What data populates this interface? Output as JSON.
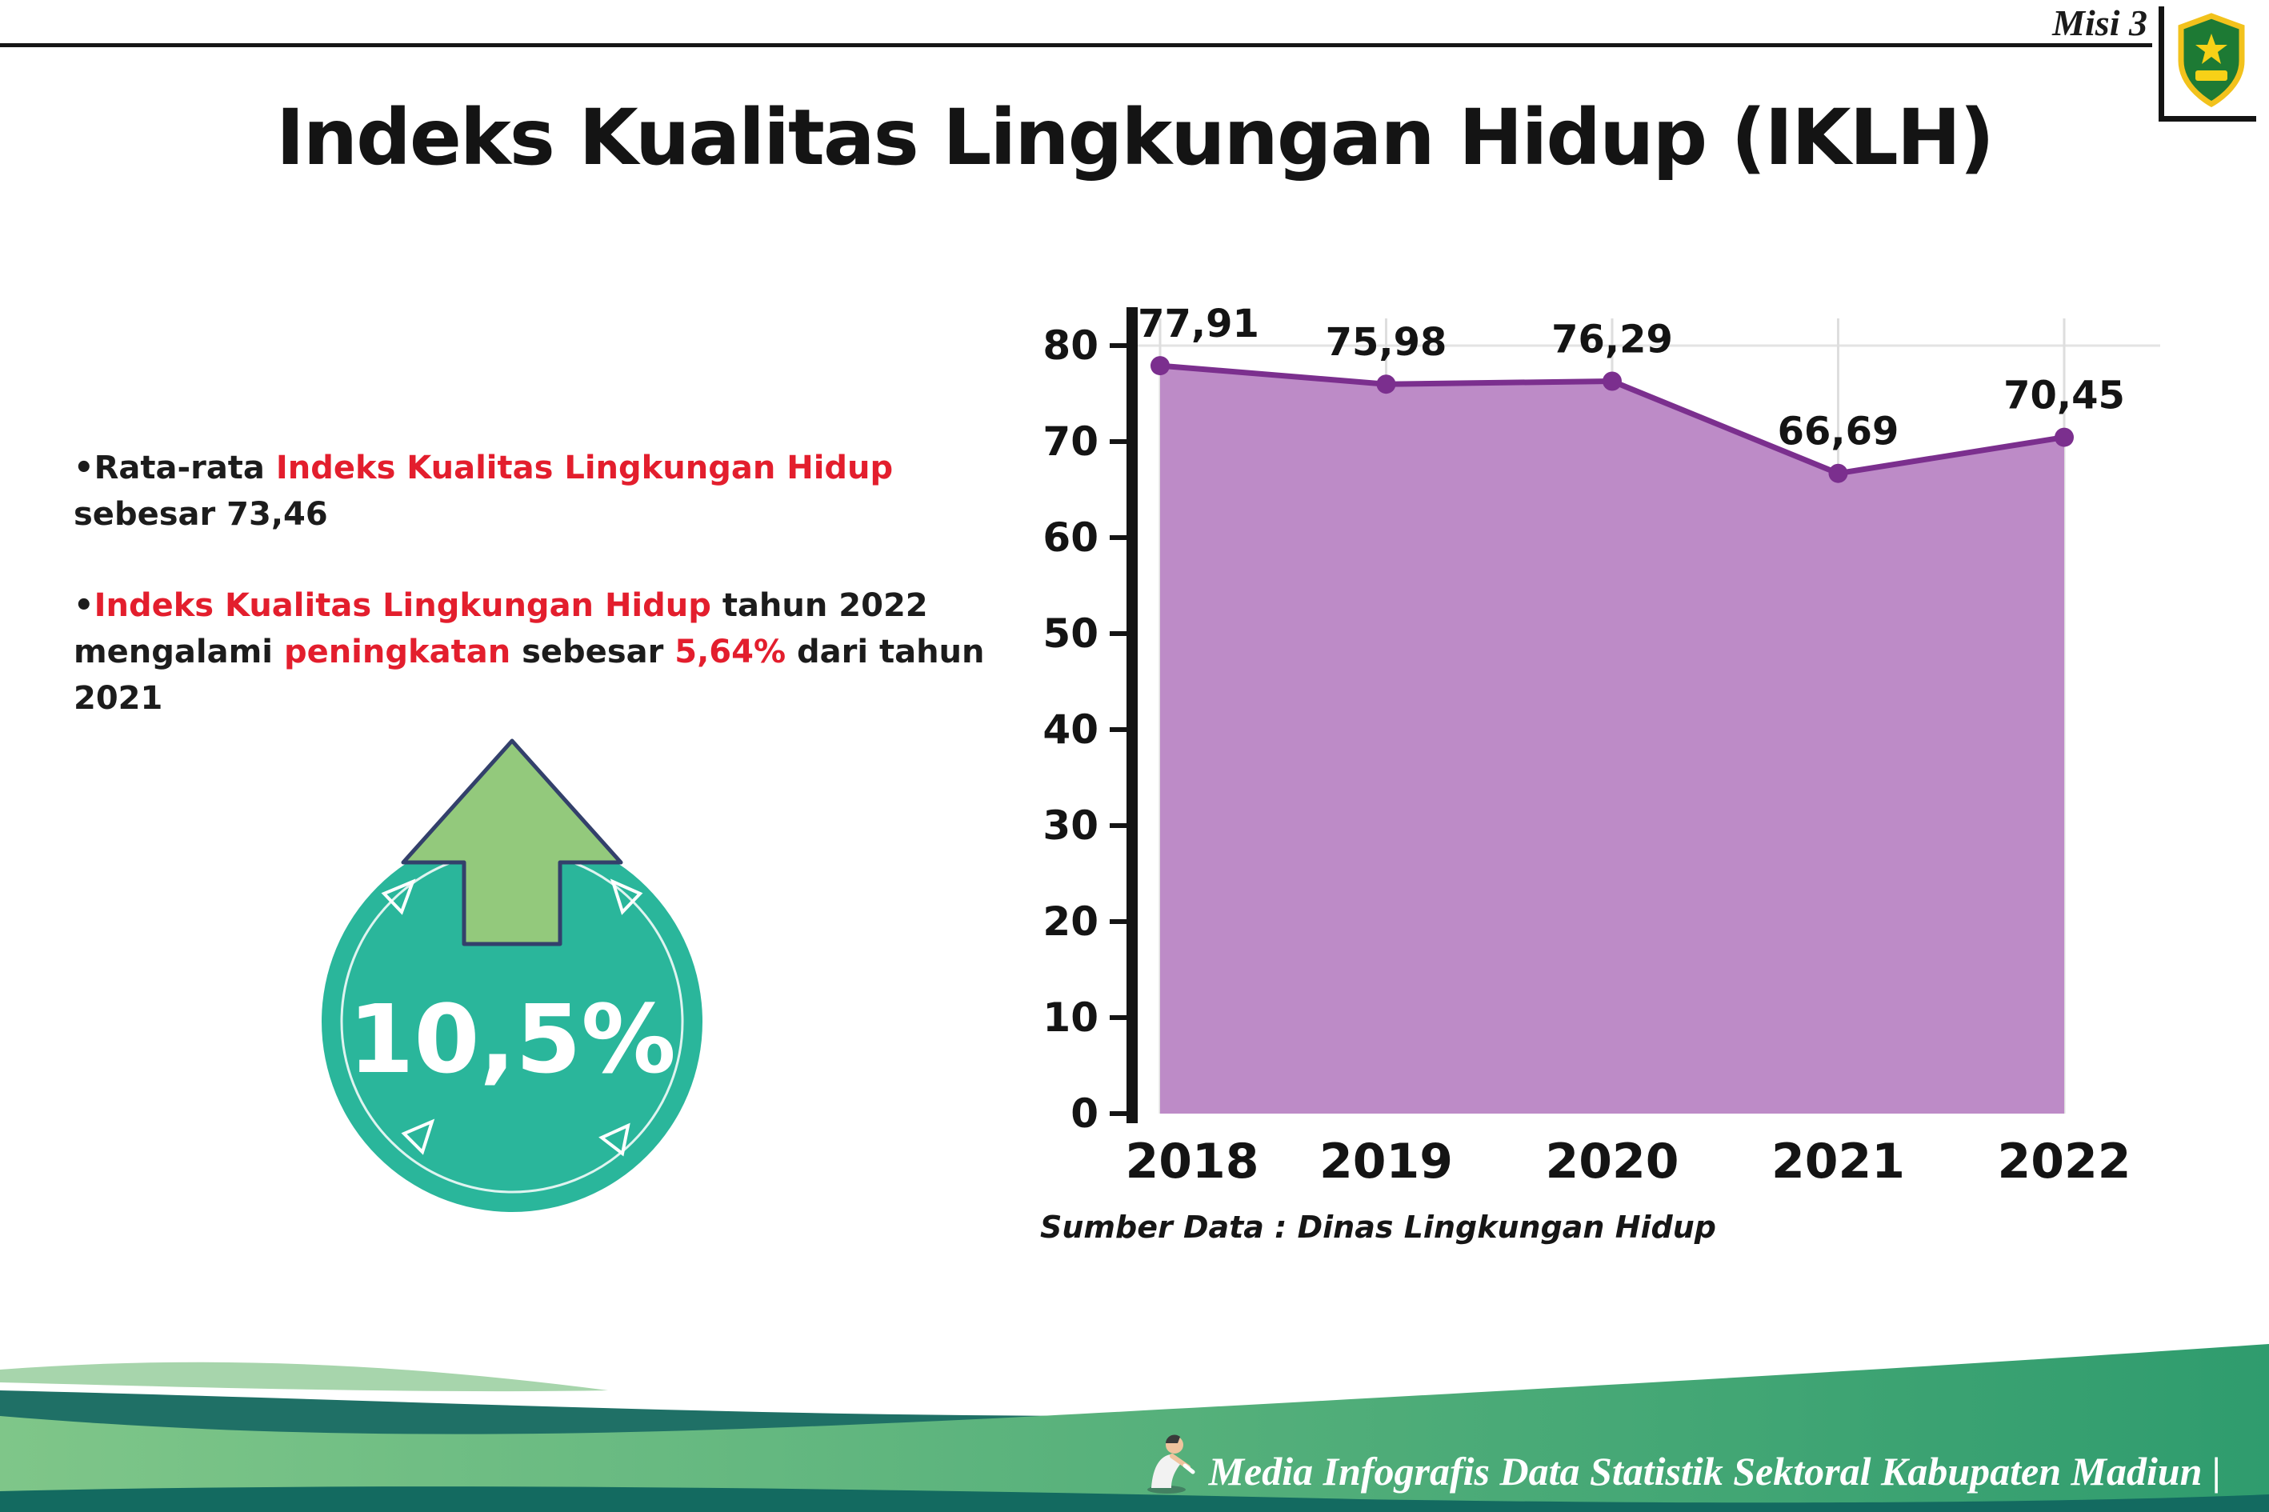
{
  "header": {
    "misi_label": "Misi 3",
    "title": "Indeks Kualitas Lingkungan Hidup (IKLH)",
    "logo": "kabupaten-madiun-crest"
  },
  "bullets": [
    {
      "segments": [
        {
          "text": "Rata-rata ",
          "color": "dark"
        },
        {
          "text": "Indeks Kualitas Lingkungan Hidup",
          "color": "red"
        },
        {
          "text": " sebesar 73,46",
          "color": "dark"
        }
      ]
    },
    {
      "segments": [
        {
          "text": "Indeks Kualitas Lingkungan Hidup",
          "color": "red"
        },
        {
          "text": " tahun 2022 mengalami ",
          "color": "dark"
        },
        {
          "text": "peningkatan",
          "color": "red"
        },
        {
          "text": " sebesar ",
          "color": "dark"
        },
        {
          "text": "5,64%",
          "color": "red"
        },
        {
          "text": " dari tahun 2021",
          "color": "dark"
        }
      ]
    }
  ],
  "badge": {
    "value": "10,5%",
    "circle_color": "#2ab69b",
    "arrow_color": "#93c97c"
  },
  "chart_data": {
    "type": "area",
    "title": "",
    "categories": [
      "2018",
      "2019",
      "2020",
      "2021",
      "2022"
    ],
    "values": [
      77.91,
      75.98,
      76.29,
      66.69,
      70.45
    ],
    "point_labels": [
      "77,91",
      "75,98",
      "76,29",
      "66,69",
      "70,45"
    ],
    "xlabel": "",
    "ylabel": "",
    "ylim": [
      0,
      80
    ],
    "yticks": [
      0,
      10,
      20,
      30,
      40,
      50,
      60,
      70,
      80
    ],
    "grid": "light-vertical",
    "legend": "none",
    "fill_color": "#bd8bc7",
    "line_color": "#7b2f8e",
    "source": "Sumber Data : Dinas Lingkungan Hidup"
  },
  "footer": {
    "credit": "Media Infografis Data Statistik Sektoral Kabupaten Madiun |"
  },
  "colors": {
    "red": "#e31e2d",
    "dark": "#1c1c1c",
    "teal_dark": "#1f7066",
    "green_light": "#a7d5ac",
    "green_grad_start": "#7fc689",
    "green_grad_end": "#2f9c6e",
    "bottom_strip": "#136a60"
  }
}
